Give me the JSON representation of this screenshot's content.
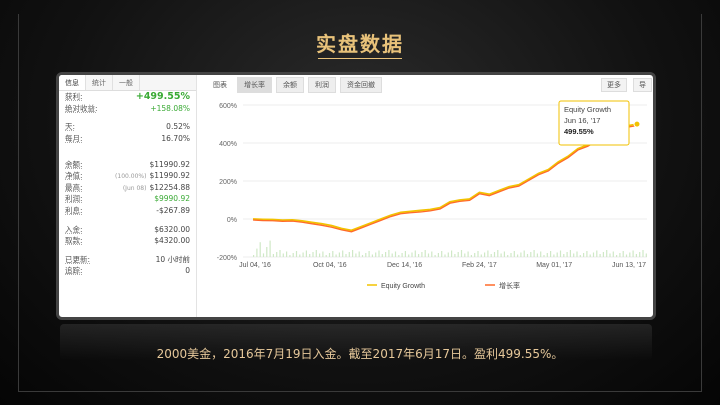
{
  "header": {
    "title": "实盘数据"
  },
  "left_panel": {
    "tabs": [
      "信息",
      "统计",
      "一般"
    ],
    "stats": [
      {
        "label": "获利:",
        "value": "+499.55%",
        "style": "green big"
      },
      {
        "label": "绝对收益:",
        "value": "+158.08%",
        "style": "green"
      },
      {
        "gap": true
      },
      {
        "label": "天:",
        "value": "0.52%",
        "style": ""
      },
      {
        "label": "每月:",
        "value": "16.70%",
        "style": ""
      },
      {
        "gap": true
      },
      {
        "gap": true
      },
      {
        "label": "余额:",
        "value": "$11990.92",
        "style": ""
      },
      {
        "label": "净值:",
        "prefix": "(100.00%)",
        "value": "$11990.92",
        "style": ""
      },
      {
        "label": "最高:",
        "prefix": "(Jun 08)",
        "value": "$12254.88",
        "style": ""
      },
      {
        "label": "利润:",
        "value": "$9990.92",
        "style": "green"
      },
      {
        "label": "利息:",
        "value": "-$267.89",
        "style": ""
      },
      {
        "gap": true
      },
      {
        "label": "入金:",
        "value": "$6320.00",
        "style": ""
      },
      {
        "label": "取款:",
        "value": "$4320.00",
        "style": ""
      },
      {
        "gap": true
      },
      {
        "label": "已更新:",
        "value": "10 小时前",
        "style": ""
      },
      {
        "label": "追踪:",
        "value": "0",
        "style": ""
      }
    ]
  },
  "chart_tabs": {
    "items": [
      {
        "label": "图表",
        "variant": "plain"
      },
      {
        "label": "增长率",
        "variant": "active"
      },
      {
        "label": "余额",
        "variant": "box"
      },
      {
        "label": "利润",
        "variant": "box"
      },
      {
        "label": "资金回撤",
        "variant": "box"
      }
    ],
    "more": "更多",
    "export": "导"
  },
  "chart_data": {
    "type": "line",
    "x_labels": [
      "Jul 04, '16",
      "Oct 04, '16",
      "Dec 14, '16",
      "Feb 24, '17",
      "May 01, '17",
      "Jun 13, '17"
    ],
    "y_ticks": [
      "600%",
      "400%",
      "200%",
      "0%",
      "-200%"
    ],
    "ylim": [
      -200,
      600
    ],
    "series": [
      {
        "name": "Equity Growth",
        "color": "#f2c200",
        "values": [
          0,
          -2,
          -3,
          -6,
          -5,
          -10,
          -18,
          -25,
          -35,
          -50,
          -60,
          -40,
          -20,
          0,
          20,
          35,
          40,
          45,
          50,
          60,
          90,
          100,
          105,
          140,
          130,
          150,
          170,
          180,
          210,
          240,
          260,
          300,
          330,
          370,
          390,
          420,
          470,
          480,
          490,
          499.55
        ]
      },
      {
        "name": "增长率",
        "color": "#ff6a2a",
        "values": [
          0,
          -3,
          -4,
          -7,
          -6,
          -12,
          -20,
          -28,
          -38,
          -52,
          -62,
          -42,
          -22,
          -2,
          18,
          33,
          38,
          42,
          48,
          58,
          88,
          98,
          103,
          138,
          128,
          148,
          168,
          178,
          208,
          238,
          258,
          298,
          328,
          368,
          388,
          418,
          468,
          478,
          488,
          497
        ]
      }
    ],
    "tooltip": {
      "title": "Equity Growth",
      "date": "Jun 16, '17",
      "value": "499.55%"
    }
  },
  "caption": "2000美金，2016年7月19日入金。截至2017年6月17日。盈利499.55%。"
}
